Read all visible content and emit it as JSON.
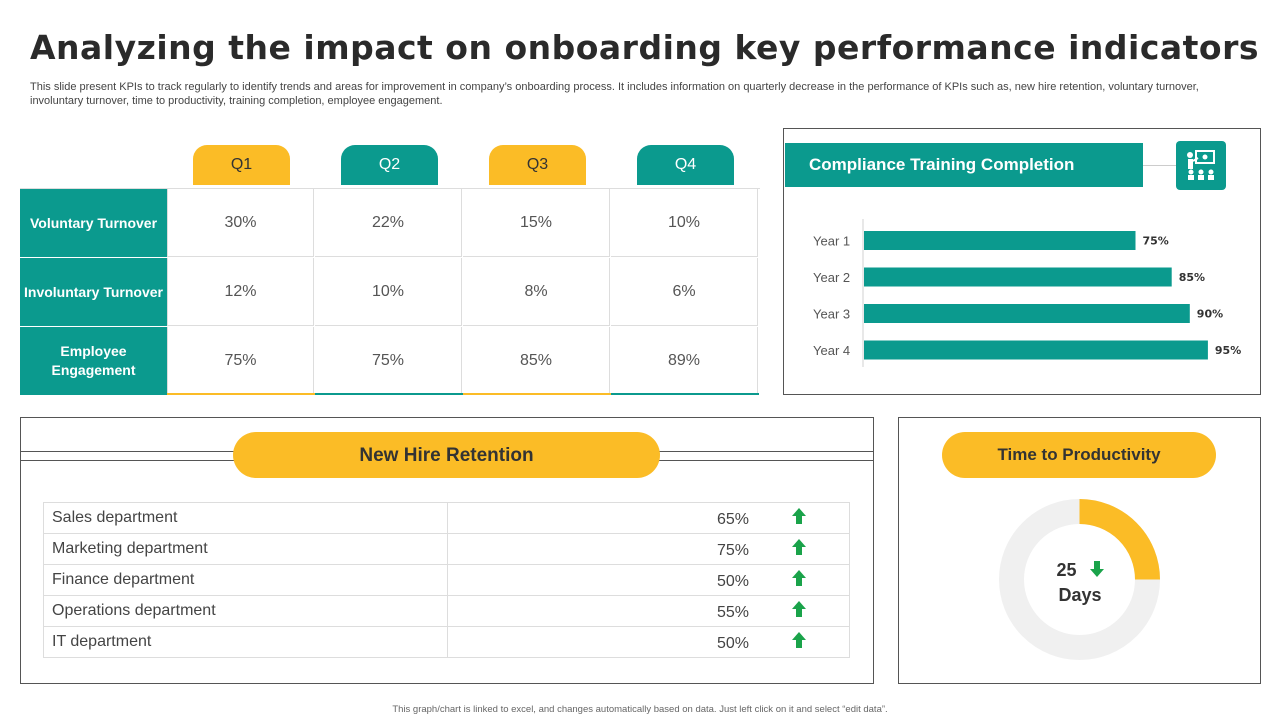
{
  "title": "Analyzing the impact on onboarding key performance indicators",
  "subtitle": "This slide present KPIs to track regularly to identify trends and areas for improvement in company’s onboarding process. It includes information on quarterly decrease in the performance of KPIs such as, new hire retention, voluntary turnover, involuntary turnover, time to productivity, training completion, employee engagement.",
  "kpi_table": {
    "quarters": [
      "Q1",
      "Q2",
      "Q3",
      "Q4"
    ],
    "rows": [
      {
        "label": "Voluntary Turnover",
        "values": [
          "30%",
          "22%",
          "15%",
          "10%"
        ]
      },
      {
        "label": "Involuntary Turnover",
        "values": [
          "12%",
          "10%",
          "8%",
          "6%"
        ]
      },
      {
        "label": "Employee Engagement",
        "values": [
          "75%",
          "75%",
          "85%",
          "89%"
        ]
      }
    ]
  },
  "compliance": {
    "title": "Compliance Training Completion",
    "icon": "training-presentation-icon"
  },
  "retention": {
    "title": "New Hire Retention",
    "rows": [
      {
        "dept": "Sales department",
        "value": "65%",
        "trend": "up"
      },
      {
        "dept": "Marketing department",
        "value": "75%",
        "trend": "up"
      },
      {
        "dept": "Finance department",
        "value": "50%",
        "trend": "up"
      },
      {
        "dept": "Operations department",
        "value": "55%",
        "trend": "up"
      },
      {
        "dept": "IT department",
        "value": "50%",
        "trend": "up"
      }
    ]
  },
  "productivity": {
    "title": "Time to Productivity",
    "value": "25",
    "unit": "Days",
    "trend": "down",
    "fill_fraction": 0.25
  },
  "colors": {
    "teal": "#0b9a8e",
    "yellow": "#fbbc26",
    "green_arrow": "#1aa34a",
    "track": "#f0f0f0"
  },
  "footer": "This graph/chart is linked to excel, and changes automatically based on data. Just left click on it and select “edit data”.",
  "chart_data": {
    "type": "bar",
    "orientation": "horizontal",
    "title": "Compliance Training Completion",
    "categories": [
      "Year 1",
      "Year 2",
      "Year 3",
      "Year 4"
    ],
    "values": [
      75,
      85,
      90,
      95
    ],
    "value_labels": [
      "75%",
      "85%",
      "90%",
      "95%"
    ],
    "xlim": [
      0,
      100
    ]
  }
}
